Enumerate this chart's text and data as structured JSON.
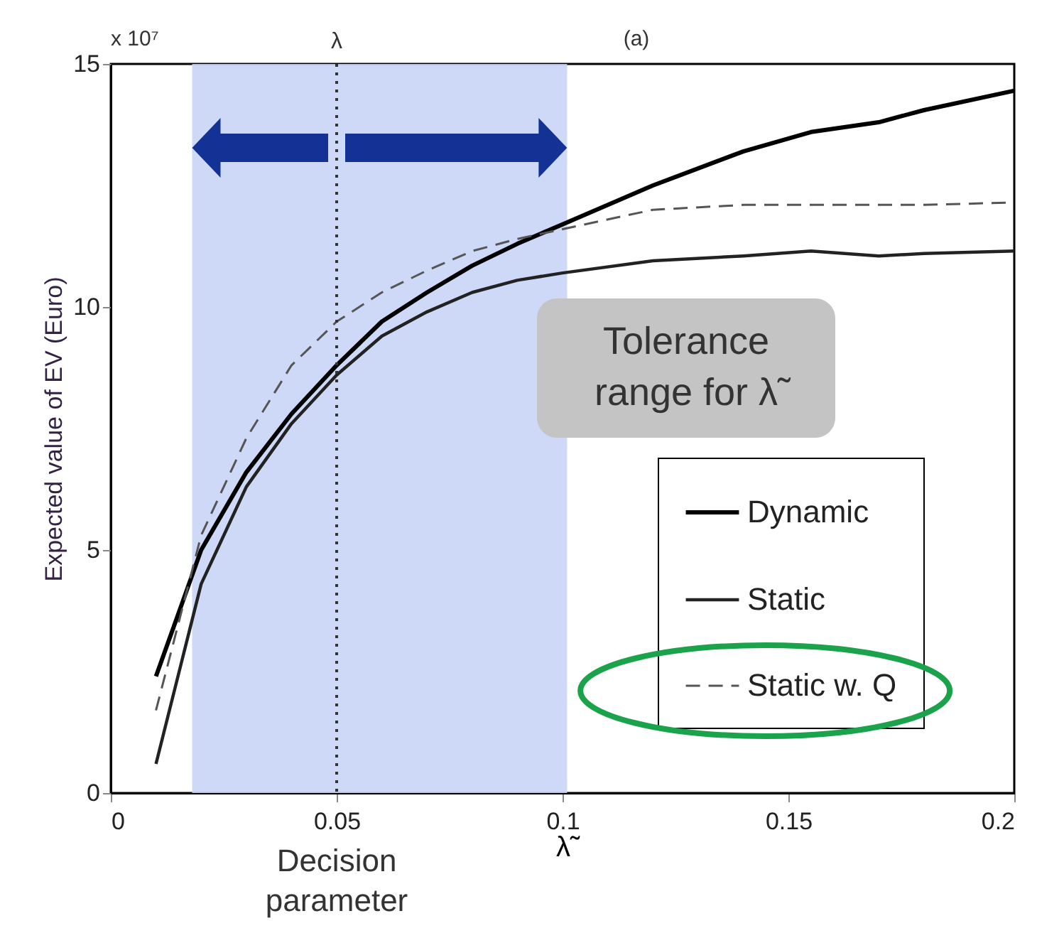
{
  "chart_data": {
    "type": "line",
    "xlabel": "λ̃",
    "ylabel": "Expected value of EV (Euro)",
    "x": [
      0.01,
      0.02,
      0.03,
      0.04,
      0.05,
      0.06,
      0.07,
      0.08,
      0.09,
      0.1,
      0.12,
      0.14,
      0.155,
      0.17,
      0.18,
      0.2
    ],
    "series": [
      {
        "name": "Dynamic",
        "color": "#000000",
        "line_style": "solid",
        "values": [
          2.4,
          5.0,
          6.6,
          7.8,
          8.8,
          9.7,
          10.3,
          10.85,
          11.3,
          11.7,
          12.5,
          13.2,
          13.6,
          13.8,
          14.05,
          14.45
        ]
      },
      {
        "name": "Static",
        "color": "#222222",
        "line_style": "solid",
        "values": [
          0.6,
          4.3,
          6.3,
          7.6,
          8.6,
          9.4,
          9.9,
          10.3,
          10.55,
          10.7,
          10.95,
          11.05,
          11.15,
          11.05,
          11.1,
          11.15
        ]
      },
      {
        "name": "Static w. Q",
        "color": "#555555",
        "line_style": "dashed",
        "values": [
          1.7,
          5.3,
          7.3,
          8.8,
          9.7,
          10.3,
          10.75,
          11.15,
          11.4,
          11.6,
          12.0,
          12.1,
          12.1,
          12.1,
          12.1,
          12.15
        ]
      }
    ],
    "xlim": [
      0,
      0.2
    ],
    "xticks": [
      0,
      0.05,
      0.1,
      0.15,
      0.2
    ],
    "ylim": [
      0,
      15
    ],
    "yticks": [
      0,
      5,
      10,
      15
    ],
    "grid": false,
    "legend": "bottom right",
    "marker": "none",
    "ref_lines": [
      {
        "axis": "x",
        "value": 0.05,
        "label": "λ",
        "color": "#333333",
        "line_style": "dotted"
      }
    ],
    "bands": [
      {
        "axis": "x",
        "from": 0.018,
        "to": 0.101,
        "label": "Tolerance range for λ̃",
        "color": "#c9d5f7"
      }
    ],
    "annotations": [
      "x 10⁷",
      "(a)",
      "Decision parameter"
    ]
  }
}
